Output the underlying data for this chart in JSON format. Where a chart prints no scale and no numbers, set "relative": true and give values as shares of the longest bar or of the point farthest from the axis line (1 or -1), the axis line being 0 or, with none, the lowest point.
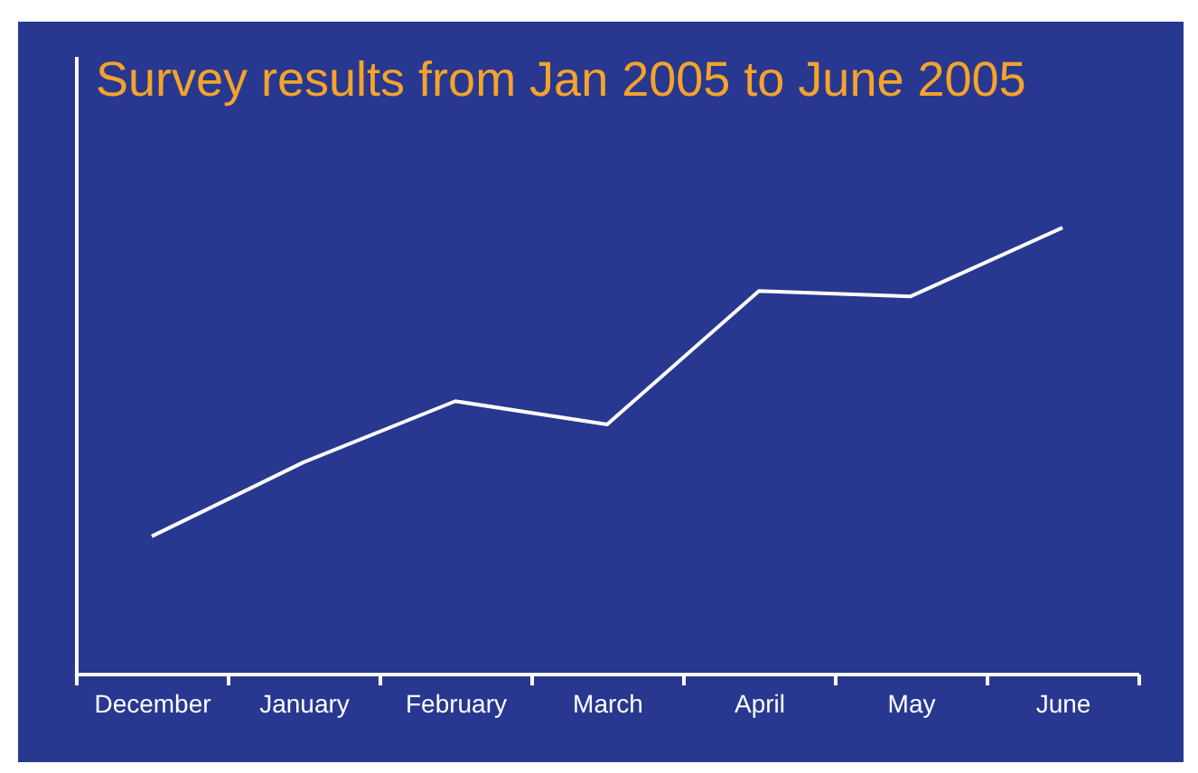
{
  "chart_data": {
    "type": "line",
    "title": "Survey results from Jan 2005 to June 2005",
    "relative": true,
    "categories": [
      "December",
      "January",
      "February",
      "March",
      "April",
      "May",
      "June"
    ],
    "series": [
      {
        "color": "#ffffff",
        "values": [
          0.308,
          0.474,
          0.611,
          0.559,
          0.858,
          0.846,
          1
        ]
      }
    ],
    "grid": false,
    "marker": "none",
    "line_style": "solid"
  }
}
